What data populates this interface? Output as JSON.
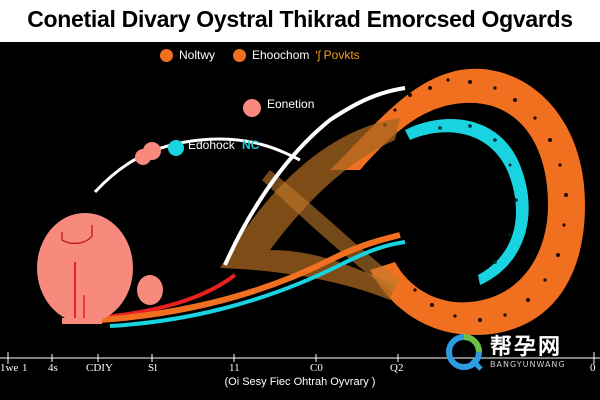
{
  "title": "Conetial Divary Oystral Thikrad Emorcsed Ogvards",
  "legend": [
    {
      "label": "Noltwy",
      "color": "#f07020"
    },
    {
      "label": "Ehoochom",
      "color": "#f07020"
    }
  ],
  "legend_extra": "ʹʃ Povkts",
  "labels": {
    "eonetion": "Eonetion",
    "edohock": "Edohock",
    "nc": "NC"
  },
  "axis_ticks": [
    "1we",
    "1",
    "4s",
    "CDIY",
    "Sl",
    "11",
    "C0",
    "Q2",
    "0"
  ],
  "axis_title": "(Oi Sesy Fiec Ohtrah Oyvrary )",
  "watermark": {
    "cn": "帮孕网",
    "en": "BANGYUNWANG"
  },
  "colors": {
    "orange": "#f07020",
    "cyan": "#19d3e0",
    "salmon": "#f7897d",
    "bronze": "#a8661e",
    "red": "#e82020"
  }
}
